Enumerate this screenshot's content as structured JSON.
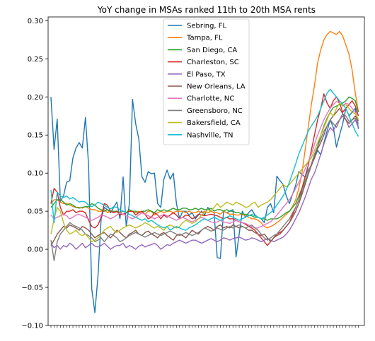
{
  "chart_data": {
    "type": "line",
    "title": "YoY change in MSAs ranked 11th to 20th MSA rents",
    "xlabel": "",
    "ylabel": "",
    "xlim": [
      0,
      99
    ],
    "ylim": [
      -0.1,
      0.305
    ],
    "yticks": [
      -0.1,
      -0.05,
      0.0,
      0.05,
      0.1,
      0.15,
      0.2,
      0.25,
      0.3
    ],
    "ytick_labels": [
      "−0.10",
      "−0.05",
      "0.00",
      "0.05",
      "0.10",
      "0.15",
      "0.20",
      "0.25",
      "0.30"
    ],
    "grid": false,
    "legend_position": "top-center",
    "series": [
      {
        "name": "Sebring, FL",
        "color": "#1f77b4",
        "values": [
          0.2,
          0.131,
          0.171,
          0.063,
          0.07,
          0.088,
          0.09,
          0.12,
          0.133,
          0.14,
          0.133,
          0.173,
          0.11,
          -0.052,
          -0.083,
          -0.035,
          0.04,
          0.055,
          0.052,
          0.048,
          0.055,
          0.062,
          0.04,
          0.095,
          0.03,
          0.06,
          0.197,
          0.165,
          0.145,
          0.095,
          0.088,
          0.102,
          0.099,
          0.1,
          0.06,
          0.055,
          0.092,
          0.104,
          0.092,
          0.1,
          0.06,
          0.04,
          0.05,
          0.05,
          0.045,
          0.048,
          0.04,
          0.045,
          0.05,
          0.045,
          0.055,
          0.05,
          0.048,
          -0.011,
          -0.012,
          0.05,
          0.048,
          0.05,
          0.052,
          -0.01,
          0.02,
          0.05,
          0.042,
          0.048,
          0.052,
          0.045,
          0.042,
          0.04,
          0.035,
          0.055,
          0.06,
          0.048,
          0.096,
          0.09,
          0.085,
          0.07,
          0.06,
          0.072,
          0.084,
          0.102,
          0.098,
          0.095,
          0.104,
          0.11,
          0.12,
          0.13,
          0.124,
          0.14,
          0.155,
          0.17,
          0.16,
          0.134,
          0.15,
          0.165,
          0.185,
          0.175,
          0.18,
          0.185,
          0.158
        ]
      },
      {
        "name": "Tampa, FL",
        "color": "#ff7f0e",
        "values": [
          0.06,
          0.065,
          0.065,
          0.062,
          0.06,
          0.06,
          0.058,
          0.056,
          0.055,
          0.055,
          0.054,
          0.056,
          0.054,
          0.052,
          0.052,
          0.05,
          0.05,
          0.052,
          0.048,
          0.05,
          0.048,
          0.05,
          0.048,
          0.05,
          0.048,
          0.05,
          0.05,
          0.048,
          0.05,
          0.048,
          0.046,
          0.05,
          0.05,
          0.045,
          0.048,
          0.05,
          0.048,
          0.05,
          0.05,
          0.048,
          0.05,
          0.05,
          0.05,
          0.048,
          0.05,
          0.048,
          0.048,
          0.05,
          0.048,
          0.05,
          0.048,
          0.05,
          0.048,
          0.048,
          0.046,
          0.05,
          0.048,
          0.046,
          0.046,
          0.045,
          0.045,
          0.046,
          0.044,
          0.042,
          0.04,
          0.04,
          0.038,
          0.035,
          0.03,
          0.028,
          0.03,
          0.032,
          0.035,
          0.038,
          0.042,
          0.046,
          0.05,
          0.056,
          0.065,
          0.08,
          0.1,
          0.13,
          0.16,
          0.19,
          0.215,
          0.245,
          0.262,
          0.275,
          0.282,
          0.286,
          0.284,
          0.282,
          0.286,
          0.28,
          0.268,
          0.256,
          0.235,
          0.205,
          0.18
        ]
      },
      {
        "name": "San Diego, CA",
        "color": "#2ca02c",
        "values": [
          0.055,
          0.06,
          0.065,
          0.065,
          0.062,
          0.058,
          0.06,
          0.058,
          0.055,
          0.054,
          0.055,
          0.056,
          0.056,
          0.06,
          0.058,
          0.054,
          0.052,
          0.05,
          0.052,
          0.05,
          0.05,
          0.05,
          0.048,
          0.05,
          0.048,
          0.052,
          0.05,
          0.05,
          0.048,
          0.05,
          0.05,
          0.052,
          0.05,
          0.048,
          0.052,
          0.05,
          0.052,
          0.05,
          0.052,
          0.054,
          0.052,
          0.052,
          0.054,
          0.054,
          0.052,
          0.052,
          0.054,
          0.052,
          0.054,
          0.052,
          0.052,
          0.054,
          0.05,
          0.052,
          0.052,
          0.05,
          0.052,
          0.05,
          0.05,
          0.048,
          0.048,
          0.046,
          0.046,
          0.045,
          0.044,
          0.042,
          0.042,
          0.04,
          0.04,
          0.038,
          0.04,
          0.04,
          0.04,
          0.042,
          0.045,
          0.048,
          0.05,
          0.055,
          0.06,
          0.07,
          0.08,
          0.09,
          0.1,
          0.11,
          0.122,
          0.135,
          0.15,
          0.162,
          0.172,
          0.18,
          0.186,
          0.188,
          0.19,
          0.192,
          0.195,
          0.2,
          0.198,
          0.195,
          0.18
        ]
      },
      {
        "name": "Charleston, SC",
        "color": "#d62728",
        "values": [
          0.06,
          0.08,
          0.075,
          0.055,
          0.045,
          0.05,
          0.05,
          0.052,
          0.048,
          0.05,
          0.05,
          0.048,
          0.038,
          0.03,
          0.028,
          0.032,
          0.042,
          0.06,
          0.058,
          0.05,
          0.048,
          0.05,
          0.045,
          0.046,
          0.048,
          0.05,
          0.05,
          0.045,
          0.048,
          0.05,
          0.046,
          0.04,
          0.042,
          0.048,
          0.045,
          0.04,
          0.045,
          0.042,
          0.045,
          0.048,
          0.045,
          0.04,
          0.042,
          0.045,
          0.044,
          0.04,
          0.042,
          0.046,
          0.045,
          0.044,
          0.045,
          0.046,
          0.045,
          0.044,
          0.042,
          0.04,
          0.042,
          0.04,
          0.04,
          0.038,
          0.036,
          0.035,
          0.033,
          0.03,
          0.028,
          0.025,
          0.02,
          0.015,
          0.01,
          0.005,
          0.01,
          0.015,
          0.02,
          0.022,
          0.025,
          0.03,
          0.035,
          0.045,
          0.055,
          0.065,
          0.08,
          0.095,
          0.11,
          0.13,
          0.15,
          0.17,
          0.185,
          0.204,
          0.192,
          0.185,
          0.195,
          0.2,
          0.192,
          0.18,
          0.185,
          0.19,
          0.195,
          0.188,
          0.175
        ]
      },
      {
        "name": "El Paso, TX",
        "color": "#9467bd",
        "values": [
          0.008,
          0.002,
          0.005,
          0.0,
          0.005,
          0.003,
          0.008,
          0.005,
          0.0,
          0.004,
          0.008,
          0.002,
          0.005,
          0.008,
          0.004,
          0.003,
          0.005,
          0.008,
          0.004,
          0.0,
          0.003,
          0.005,
          0.005,
          0.008,
          0.002,
          0.005,
          0.003,
          0.0,
          0.004,
          0.006,
          0.003,
          0.005,
          0.006,
          0.008,
          0.005,
          0.0,
          0.003,
          0.006,
          0.005,
          0.008,
          0.01,
          0.012,
          0.01,
          0.008,
          0.01,
          0.012,
          0.012,
          0.01,
          0.008,
          0.01,
          0.012,
          0.014,
          0.012,
          0.01,
          0.012,
          0.015,
          0.014,
          0.012,
          0.014,
          0.015,
          0.016,
          0.014,
          0.012,
          0.013,
          0.015,
          0.014,
          0.012,
          0.01,
          0.012,
          0.014,
          0.012,
          0.01,
          0.012,
          0.014,
          0.016,
          0.02,
          0.025,
          0.032,
          0.04,
          0.048,
          0.058,
          0.068,
          0.08,
          0.092,
          0.1,
          0.112,
          0.125,
          0.138,
          0.15,
          0.16,
          0.155,
          0.165,
          0.17,
          0.175,
          0.17,
          0.16,
          0.165,
          0.17,
          0.16
        ]
      },
      {
        "name": "New Orleans, LA",
        "color": "#8c564b",
        "values": [
          0.005,
          0.012,
          0.02,
          0.025,
          0.03,
          0.028,
          0.032,
          0.03,
          0.028,
          0.025,
          0.03,
          0.028,
          0.025,
          0.02,
          0.015,
          0.018,
          0.02,
          0.022,
          0.018,
          0.015,
          0.02,
          0.025,
          0.022,
          0.018,
          0.015,
          0.02,
          0.022,
          0.025,
          0.02,
          0.018,
          0.022,
          0.024,
          0.02,
          0.018,
          0.015,
          0.02,
          0.022,
          0.018,
          0.015,
          0.012,
          0.018,
          0.02,
          0.018,
          0.015,
          0.02,
          0.025,
          0.022,
          0.02,
          0.025,
          0.028,
          0.03,
          0.028,
          0.025,
          0.03,
          0.032,
          0.028,
          0.03,
          0.028,
          0.032,
          0.03,
          0.028,
          0.03,
          0.028,
          0.025,
          0.025,
          0.022,
          0.02,
          0.018,
          0.02,
          0.015,
          0.01,
          0.015,
          0.018,
          0.02,
          0.025,
          0.03,
          0.035,
          0.042,
          0.05,
          0.06,
          0.072,
          0.085,
          0.098,
          0.11,
          0.12,
          0.132,
          0.14,
          0.15,
          0.162,
          0.17,
          0.175,
          0.18,
          0.185,
          0.178,
          0.17,
          0.165,
          0.17,
          0.175,
          0.168
        ]
      },
      {
        "name": "Charlotte, NC",
        "color": "#e377c2",
        "values": [
          0.045,
          0.04,
          0.042,
          0.044,
          0.046,
          0.044,
          0.04,
          0.042,
          0.045,
          0.046,
          0.044,
          0.042,
          0.04,
          0.038,
          0.04,
          0.042,
          0.045,
          0.044,
          0.042,
          0.04,
          0.042,
          0.045,
          0.048,
          0.046,
          0.044,
          0.042,
          0.04,
          0.042,
          0.045,
          0.048,
          0.046,
          0.044,
          0.042,
          0.04,
          0.042,
          0.044,
          0.046,
          0.044,
          0.042,
          0.04,
          0.038,
          0.04,
          0.042,
          0.04,
          0.038,
          0.036,
          0.038,
          0.04,
          0.042,
          0.04,
          0.038,
          0.036,
          0.035,
          0.036,
          0.038,
          0.036,
          0.035,
          0.034,
          0.036,
          0.038,
          0.036,
          0.035,
          0.034,
          0.032,
          0.03,
          0.028,
          0.028,
          0.03,
          0.032,
          0.034,
          0.036,
          0.04,
          0.045,
          0.05,
          0.055,
          0.06,
          0.065,
          0.072,
          0.08,
          0.088,
          0.096,
          0.105,
          0.115,
          0.125,
          0.138,
          0.15,
          0.16,
          0.17,
          0.178,
          0.185,
          0.19,
          0.194,
          0.192,
          0.188,
          0.192,
          0.19,
          0.185,
          0.18,
          0.17
        ]
      },
      {
        "name": "Greensboro, NC",
        "color": "#7f7f7f",
        "values": [
          0.012,
          -0.015,
          0.01,
          0.02,
          0.025,
          0.03,
          0.035,
          0.032,
          0.03,
          0.028,
          0.025,
          0.02,
          0.018,
          0.015,
          0.01,
          0.012,
          0.015,
          0.01,
          0.015,
          0.02,
          0.018,
          0.015,
          0.01,
          0.012,
          0.015,
          0.018,
          0.02,
          0.022,
          0.02,
          0.018,
          0.016,
          0.018,
          0.02,
          0.022,
          0.02,
          0.018,
          0.02,
          0.022,
          0.024,
          0.022,
          0.02,
          0.018,
          0.02,
          0.022,
          0.02,
          0.018,
          0.02,
          0.022,
          0.025,
          0.028,
          0.026,
          0.024,
          0.025,
          0.028,
          0.026,
          0.025,
          0.028,
          0.03,
          0.028,
          0.03,
          0.032,
          0.03,
          0.028,
          0.03,
          0.032,
          0.028,
          0.025,
          0.02,
          0.015,
          0.012,
          0.015,
          0.018,
          0.02,
          0.025,
          0.03,
          0.035,
          0.04,
          0.048,
          0.055,
          0.065,
          0.075,
          0.088,
          0.1,
          0.112,
          0.125,
          0.135,
          0.145,
          0.155,
          0.162,
          0.17,
          0.165,
          0.16,
          0.17,
          0.178,
          0.175,
          0.168,
          0.17,
          0.172,
          0.165
        ]
      },
      {
        "name": "Bakersfield, CA",
        "color": "#bcbd22",
        "values": [
          0.02,
          0.04,
          0.055,
          0.05,
          0.035,
          0.025,
          0.02,
          0.022,
          0.025,
          0.02,
          0.018,
          0.02,
          0.015,
          0.01,
          0.012,
          0.015,
          0.02,
          0.025,
          0.028,
          0.03,
          0.025,
          0.022,
          0.025,
          0.028,
          0.03,
          0.032,
          0.03,
          0.028,
          0.03,
          0.032,
          0.035,
          0.033,
          0.03,
          0.028,
          0.03,
          0.028,
          0.025,
          0.03,
          0.032,
          0.03,
          0.028,
          0.03,
          0.035,
          0.038,
          0.036,
          0.034,
          0.036,
          0.04,
          0.045,
          0.048,
          0.052,
          0.05,
          0.055,
          0.06,
          0.055,
          0.058,
          0.062,
          0.06,
          0.058,
          0.062,
          0.06,
          0.058,
          0.055,
          0.056,
          0.06,
          0.062,
          0.055,
          0.058,
          0.06,
          0.062,
          0.065,
          0.07,
          0.075,
          0.08,
          0.085,
          0.082,
          0.085,
          0.09,
          0.095,
          0.1,
          0.105,
          0.11,
          0.115,
          0.12,
          0.13,
          0.14,
          0.15,
          0.16,
          0.17,
          0.18,
          0.175,
          0.185,
          0.192,
          0.188,
          0.19,
          0.185,
          0.18,
          0.178,
          0.17
        ]
      },
      {
        "name": "Nashville, TN",
        "color": "#17becf",
        "values": [
          0.078,
          0.035,
          0.075,
          0.07,
          0.068,
          0.07,
          0.066,
          0.068,
          0.065,
          0.062,
          0.063,
          0.062,
          0.058,
          0.056,
          0.058,
          0.062,
          0.06,
          0.058,
          0.055,
          0.053,
          0.056,
          0.055,
          0.052,
          0.05,
          0.048,
          0.046,
          0.044,
          0.042,
          0.04,
          0.038,
          0.04,
          0.036,
          0.038,
          0.035,
          0.032,
          0.03,
          0.028,
          0.03,
          0.025,
          0.028,
          0.03,
          0.028,
          0.026,
          0.025,
          0.028,
          0.03,
          0.032,
          0.035,
          0.038,
          0.04,
          0.038,
          0.04,
          0.042,
          0.04,
          0.038,
          0.04,
          0.042,
          0.044,
          0.042,
          0.04,
          0.038,
          0.04,
          0.042,
          0.044,
          0.046,
          0.044,
          0.042,
          0.04,
          0.042,
          0.045,
          0.048,
          0.052,
          0.058,
          0.064,
          0.07,
          0.078,
          0.088,
          0.1,
          0.112,
          0.125,
          0.135,
          0.145,
          0.155,
          0.162,
          0.168,
          0.175,
          0.185,
          0.195,
          0.205,
          0.21,
          0.205,
          0.2,
          0.195,
          0.19,
          0.185,
          0.175,
          0.165,
          0.155,
          0.148
        ]
      }
    ]
  }
}
